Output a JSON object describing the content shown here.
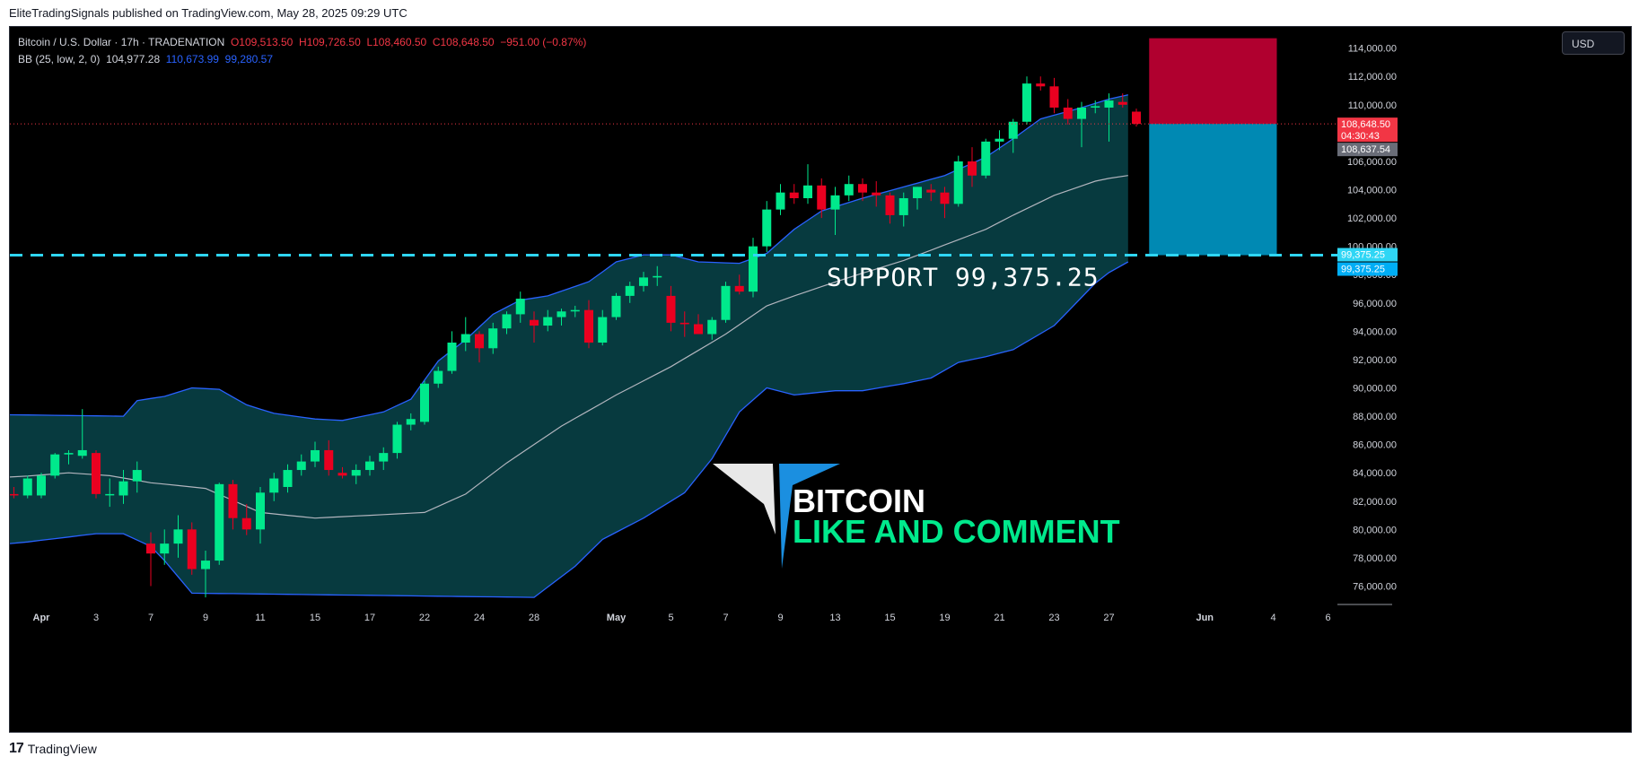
{
  "header": {
    "published_text": "EliteTradingSignals published on TradingView.com, May 28, 2025 09:29 UTC"
  },
  "legend": {
    "symbol": "Bitcoin / U.S. Dollar · 17h · TRADENATION",
    "open": "O109,513.50",
    "high": "H109,726.50",
    "low": "L108,460.50",
    "close": "C108,648.50",
    "change": "−951.00 (−0.87%)",
    "bb_label": "BB (25, low, 2, 0)",
    "bb_basis": "104,977.28",
    "bb_upper": "110,673.99",
    "bb_lower": "99,280.57"
  },
  "currency_button": "USD",
  "annotations": {
    "support_label": "SUPPORT  99,375.25",
    "logo_title": "BITCOIN",
    "logo_subtitle": "LIKE AND COMMENT"
  },
  "footer": {
    "brand": "TradingView"
  },
  "colors": {
    "up": "#00e98c",
    "down": "#ea0020",
    "bb_line": "#2962ff",
    "bb_fill": "#073a3f",
    "basis": "#b2b5be",
    "support": "#2fd6f5",
    "stop_zone": "#b0002f",
    "target_zone": "#0089b3"
  },
  "chart_data": {
    "type": "candlestick",
    "y_range": [
      74700,
      115500
    ],
    "y_ticks": [
      76000,
      78000,
      80000,
      82000,
      84000,
      86000,
      88000,
      90000,
      92000,
      94000,
      96000,
      98000,
      100000,
      102000,
      104000,
      106000,
      108000,
      110000,
      112000,
      114000
    ],
    "x_labels": [
      {
        "label": "Apr",
        "bar": 2
      },
      {
        "label": "3",
        "bar": 6
      },
      {
        "label": "7",
        "bar": 10
      },
      {
        "label": "9",
        "bar": 14
      },
      {
        "label": "11",
        "bar": 18
      },
      {
        "label": "15",
        "bar": 22
      },
      {
        "label": "17",
        "bar": 26
      },
      {
        "label": "22",
        "bar": 30
      },
      {
        "label": "24",
        "bar": 34
      },
      {
        "label": "28",
        "bar": 38
      },
      {
        "label": "May",
        "bar": 44
      },
      {
        "label": "5",
        "bar": 48
      },
      {
        "label": "7",
        "bar": 52
      },
      {
        "label": "9",
        "bar": 56
      },
      {
        "label": "13",
        "bar": 60
      },
      {
        "label": "15",
        "bar": 64
      },
      {
        "label": "19",
        "bar": 68
      },
      {
        "label": "21",
        "bar": 72
      },
      {
        "label": "23",
        "bar": 76
      },
      {
        "label": "27",
        "bar": 80
      },
      {
        "label": "Jun",
        "bar": 87
      },
      {
        "label": "4",
        "bar": 92
      },
      {
        "label": "6",
        "bar": 96
      }
    ],
    "candles": [
      {
        "o": 82500,
        "h": 83000,
        "l": 82200,
        "c": 82400
      },
      {
        "o": 82400,
        "h": 83800,
        "l": 82200,
        "c": 83600
      },
      {
        "o": 82400,
        "h": 84000,
        "l": 82200,
        "c": 83800
      },
      {
        "o": 83800,
        "h": 85400,
        "l": 83600,
        "c": 85300
      },
      {
        "o": 85300,
        "h": 85600,
        "l": 84600,
        "c": 85400
      },
      {
        "o": 85200,
        "h": 88500,
        "l": 85000,
        "c": 85600
      },
      {
        "o": 85400,
        "h": 85600,
        "l": 82200,
        "c": 82500
      },
      {
        "o": 82500,
        "h": 83600,
        "l": 81600,
        "c": 82500
      },
      {
        "o": 82400,
        "h": 84200,
        "l": 81800,
        "c": 83400
      },
      {
        "o": 83400,
        "h": 84800,
        "l": 82600,
        "c": 84200
      },
      {
        "o": 79000,
        "h": 79800,
        "l": 76000,
        "c": 78300
      },
      {
        "o": 78300,
        "h": 80000,
        "l": 77500,
        "c": 79000
      },
      {
        "o": 79000,
        "h": 81000,
        "l": 78000,
        "c": 80000
      },
      {
        "o": 80000,
        "h": 80500,
        "l": 76800,
        "c": 77200
      },
      {
        "o": 77200,
        "h": 78500,
        "l": 75200,
        "c": 77800
      },
      {
        "o": 77800,
        "h": 83300,
        "l": 77500,
        "c": 83200
      },
      {
        "o": 83200,
        "h": 83500,
        "l": 80000,
        "c": 80800
      },
      {
        "o": 80800,
        "h": 81800,
        "l": 79600,
        "c": 80000
      },
      {
        "o": 80000,
        "h": 83000,
        "l": 79000,
        "c": 82600
      },
      {
        "o": 82600,
        "h": 84000,
        "l": 82000,
        "c": 83600
      },
      {
        "o": 83000,
        "h": 84600,
        "l": 82600,
        "c": 84200
      },
      {
        "o": 84200,
        "h": 85300,
        "l": 83800,
        "c": 84800
      },
      {
        "o": 84800,
        "h": 86200,
        "l": 84400,
        "c": 85600
      },
      {
        "o": 85600,
        "h": 86300,
        "l": 83800,
        "c": 84200
      },
      {
        "o": 84000,
        "h": 84400,
        "l": 83600,
        "c": 83800
      },
      {
        "o": 83800,
        "h": 84600,
        "l": 83200,
        "c": 84200
      },
      {
        "o": 84200,
        "h": 85200,
        "l": 83800,
        "c": 84800
      },
      {
        "o": 84800,
        "h": 85800,
        "l": 84200,
        "c": 85400
      },
      {
        "o": 85400,
        "h": 87600,
        "l": 85000,
        "c": 87400
      },
      {
        "o": 87400,
        "h": 88200,
        "l": 87000,
        "c": 87800
      },
      {
        "o": 87600,
        "h": 90500,
        "l": 87400,
        "c": 90300
      },
      {
        "o": 90300,
        "h": 91500,
        "l": 90000,
        "c": 91200
      },
      {
        "o": 91200,
        "h": 94000,
        "l": 91000,
        "c": 93200
      },
      {
        "o": 93200,
        "h": 95000,
        "l": 92600,
        "c": 93800
      },
      {
        "o": 93800,
        "h": 94000,
        "l": 91800,
        "c": 92800
      },
      {
        "o": 92800,
        "h": 94600,
        "l": 92400,
        "c": 94200
      },
      {
        "o": 94200,
        "h": 95400,
        "l": 93800,
        "c": 95200
      },
      {
        "o": 95200,
        "h": 96800,
        "l": 94600,
        "c": 96300
      },
      {
        "o": 94800,
        "h": 95400,
        "l": 93200,
        "c": 94400
      },
      {
        "o": 94400,
        "h": 95500,
        "l": 94000,
        "c": 95000
      },
      {
        "o": 95000,
        "h": 95600,
        "l": 94400,
        "c": 95400
      },
      {
        "o": 95400,
        "h": 95800,
        "l": 95000,
        "c": 95500
      },
      {
        "o": 95500,
        "h": 96200,
        "l": 92800,
        "c": 93200
      },
      {
        "o": 93200,
        "h": 95500,
        "l": 93000,
        "c": 95000
      },
      {
        "o": 95000,
        "h": 96700,
        "l": 94800,
        "c": 96500
      },
      {
        "o": 96500,
        "h": 97500,
        "l": 96000,
        "c": 97200
      },
      {
        "o": 97200,
        "h": 98200,
        "l": 96800,
        "c": 97800
      },
      {
        "o": 97800,
        "h": 98600,
        "l": 97200,
        "c": 97900
      },
      {
        "o": 96500,
        "h": 97200,
        "l": 94000,
        "c": 94600
      },
      {
        "o": 94600,
        "h": 95400,
        "l": 93600,
        "c": 94500
      },
      {
        "o": 94500,
        "h": 95200,
        "l": 93800,
        "c": 93800
      },
      {
        "o": 93800,
        "h": 95000,
        "l": 93400,
        "c": 94800
      },
      {
        "o": 94800,
        "h": 97500,
        "l": 94600,
        "c": 97200
      },
      {
        "o": 97200,
        "h": 98000,
        "l": 96600,
        "c": 96800
      },
      {
        "o": 96800,
        "h": 100600,
        "l": 96400,
        "c": 100000
      },
      {
        "o": 100000,
        "h": 103200,
        "l": 99600,
        "c": 102600
      },
      {
        "o": 102600,
        "h": 104400,
        "l": 102200,
        "c": 103800
      },
      {
        "o": 103800,
        "h": 104400,
        "l": 103000,
        "c": 103400
      },
      {
        "o": 103400,
        "h": 105800,
        "l": 103000,
        "c": 104300
      },
      {
        "o": 104300,
        "h": 104800,
        "l": 102000,
        "c": 102600
      },
      {
        "o": 102600,
        "h": 104200,
        "l": 100800,
        "c": 103600
      },
      {
        "o": 103600,
        "h": 105000,
        "l": 103200,
        "c": 104400
      },
      {
        "o": 104400,
        "h": 104800,
        "l": 103200,
        "c": 103800
      },
      {
        "o": 103800,
        "h": 104600,
        "l": 102800,
        "c": 103600
      },
      {
        "o": 103600,
        "h": 103800,
        "l": 101600,
        "c": 102200
      },
      {
        "o": 102200,
        "h": 103800,
        "l": 101400,
        "c": 103400
      },
      {
        "o": 103400,
        "h": 104200,
        "l": 102600,
        "c": 104200
      },
      {
        "o": 104000,
        "h": 104400,
        "l": 103200,
        "c": 103800
      },
      {
        "o": 103800,
        "h": 104200,
        "l": 102000,
        "c": 103000
      },
      {
        "o": 103000,
        "h": 106400,
        "l": 102800,
        "c": 106000
      },
      {
        "o": 106000,
        "h": 107000,
        "l": 104200,
        "c": 105000
      },
      {
        "o": 105000,
        "h": 107600,
        "l": 104800,
        "c": 107400
      },
      {
        "o": 107400,
        "h": 108200,
        "l": 106800,
        "c": 107600
      },
      {
        "o": 107600,
        "h": 109000,
        "l": 106600,
        "c": 108800
      },
      {
        "o": 108800,
        "h": 112000,
        "l": 108600,
        "c": 111500
      },
      {
        "o": 111500,
        "h": 112000,
        "l": 111000,
        "c": 111300
      },
      {
        "o": 111300,
        "h": 111900,
        "l": 109400,
        "c": 109800
      },
      {
        "o": 109800,
        "h": 110400,
        "l": 108600,
        "c": 109000
      },
      {
        "o": 109000,
        "h": 110200,
        "l": 107000,
        "c": 109800
      },
      {
        "o": 109800,
        "h": 110300,
        "l": 109400,
        "c": 109900
      },
      {
        "o": 109800,
        "h": 110800,
        "l": 107400,
        "c": 110300
      },
      {
        "o": 110200,
        "h": 110800,
        "l": 109800,
        "c": 110000
      },
      {
        "o": 109513.5,
        "h": 109726.5,
        "l": 108460.5,
        "c": 108648.5
      }
    ],
    "bb_upper": [
      [
        0,
        88100
      ],
      [
        8,
        88000
      ],
      [
        9,
        89100
      ],
      [
        11,
        89400
      ],
      [
        13,
        90000
      ],
      [
        15,
        89900
      ],
      [
        17,
        88800
      ],
      [
        19,
        88200
      ],
      [
        22,
        87800
      ],
      [
        24,
        87700
      ],
      [
        27,
        88300
      ],
      [
        29,
        89200
      ],
      [
        31,
        91900
      ],
      [
        33,
        93400
      ],
      [
        35,
        95200
      ],
      [
        37,
        96200
      ],
      [
        39,
        96500
      ],
      [
        42,
        97500
      ],
      [
        44,
        98900
      ],
      [
        46,
        99400
      ],
      [
        48,
        99400
      ],
      [
        50,
        98900
      ],
      [
        53,
        98800
      ],
      [
        55,
        99500
      ],
      [
        57,
        101200
      ],
      [
        59,
        102500
      ],
      [
        62,
        103400
      ],
      [
        65,
        104200
      ],
      [
        68,
        105000
      ],
      [
        71,
        106300
      ],
      [
        73,
        107600
      ],
      [
        75,
        109000
      ],
      [
        78,
        109800
      ],
      [
        81,
        110700
      ]
    ],
    "bb_lower": [
      [
        0,
        79000
      ],
      [
        6,
        79700
      ],
      [
        8,
        79700
      ],
      [
        10,
        78800
      ],
      [
        11,
        77800
      ],
      [
        13,
        75500
      ],
      [
        38,
        75200
      ],
      [
        41,
        77400
      ],
      [
        43,
        79300
      ],
      [
        46,
        80800
      ],
      [
        49,
        82600
      ],
      [
        51,
        85000
      ],
      [
        53,
        88300
      ],
      [
        55,
        90000
      ],
      [
        57,
        89500
      ],
      [
        60,
        89800
      ],
      [
        62,
        89800
      ],
      [
        65,
        90300
      ],
      [
        67,
        90700
      ],
      [
        69,
        91800
      ],
      [
        71,
        92200
      ],
      [
        73,
        92700
      ],
      [
        76,
        94400
      ],
      [
        79,
        97400
      ],
      [
        81,
        98900
      ]
    ],
    "bb_basis": [
      [
        0,
        83700
      ],
      [
        4,
        84000
      ],
      [
        7,
        83800
      ],
      [
        10,
        83300
      ],
      [
        14,
        82900
      ],
      [
        18,
        81200
      ],
      [
        22,
        80800
      ],
      [
        26,
        81000
      ],
      [
        30,
        81200
      ],
      [
        33,
        82500
      ],
      [
        36,
        84700
      ],
      [
        40,
        87300
      ],
      [
        44,
        89500
      ],
      [
        48,
        91500
      ],
      [
        52,
        93800
      ],
      [
        55,
        95800
      ],
      [
        57,
        96500
      ],
      [
        61,
        97800
      ],
      [
        65,
        99000
      ],
      [
        68,
        100100
      ],
      [
        71,
        101200
      ],
      [
        73,
        102200
      ],
      [
        76,
        103600
      ],
      [
        79,
        104600
      ],
      [
        81,
        105000
      ]
    ],
    "support_level": 99375.25,
    "current_price": 108648.5,
    "price_label_current": "108,648.50",
    "countdown": "04:30:43",
    "price_label_gray": "108,637.54",
    "price_label_support": "99,375.25",
    "position_box": {
      "bar_start": 83,
      "bar_end": 92,
      "entry": 108648.5,
      "stop": 114700,
      "target": 99375.25
    }
  }
}
